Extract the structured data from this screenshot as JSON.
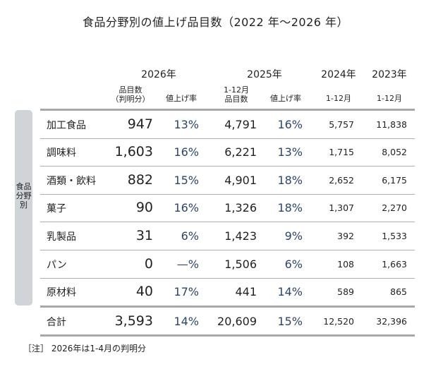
{
  "title": "食品分野別の値上げ品目数（2022 年～2026 年）",
  "side_label": "食品分野別",
  "headers": {
    "y2026": "2026年",
    "y2025": "2025年",
    "y2024": "2024年",
    "y2023": "2023年",
    "c2026_count": "品目数\n（判明分）",
    "c2026_rate": "値上げ率",
    "c2025_count": "1-12月\n品目数",
    "c2025_rate": "値上げ率",
    "c2024": "1-12月",
    "c2023": "1-12月"
  },
  "note": "［注］ 2026年は1-4月の判明分",
  "colors": {
    "rate_text": "#2d4668",
    "side_band": "#cfd4d9"
  },
  "chart_data": {
    "type": "table",
    "title": "食品分野別の値上げ品目数（2022 年～2026 年）",
    "columns": [
      "2026年 品目数（判明分）",
      "2026年 値上げ率",
      "2025年 1-12月 品目数",
      "2025年 値上げ率",
      "2024年 1-12月",
      "2023年 1-12月"
    ],
    "rows": [
      {
        "label": "加工食品",
        "values": [
          "947",
          "13%",
          "4,791",
          "16%",
          "5,757",
          "11,838"
        ]
      },
      {
        "label": "調味料",
        "values": [
          "1,603",
          "16%",
          "6,221",
          "13%",
          "1,715",
          "8,052"
        ]
      },
      {
        "label": "酒類・飲料",
        "values": [
          "882",
          "15%",
          "4,901",
          "18%",
          "2,652",
          "6,175"
        ]
      },
      {
        "label": "菓子",
        "values": [
          "90",
          "16%",
          "1,326",
          "18%",
          "1,307",
          "2,270"
        ]
      },
      {
        "label": "乳製品",
        "values": [
          "31",
          "6%",
          "1,423",
          "9%",
          "392",
          "1,533"
        ]
      },
      {
        "label": "パン",
        "values": [
          "0",
          "—%",
          "1,506",
          "6%",
          "108",
          "1,663"
        ]
      },
      {
        "label": "原材料",
        "values": [
          "40",
          "17%",
          "441",
          "14%",
          "589",
          "865"
        ]
      },
      {
        "label": "合計",
        "values": [
          "3,593",
          "14%",
          "20,609",
          "15%",
          "12,520",
          "32,396"
        ]
      }
    ]
  }
}
